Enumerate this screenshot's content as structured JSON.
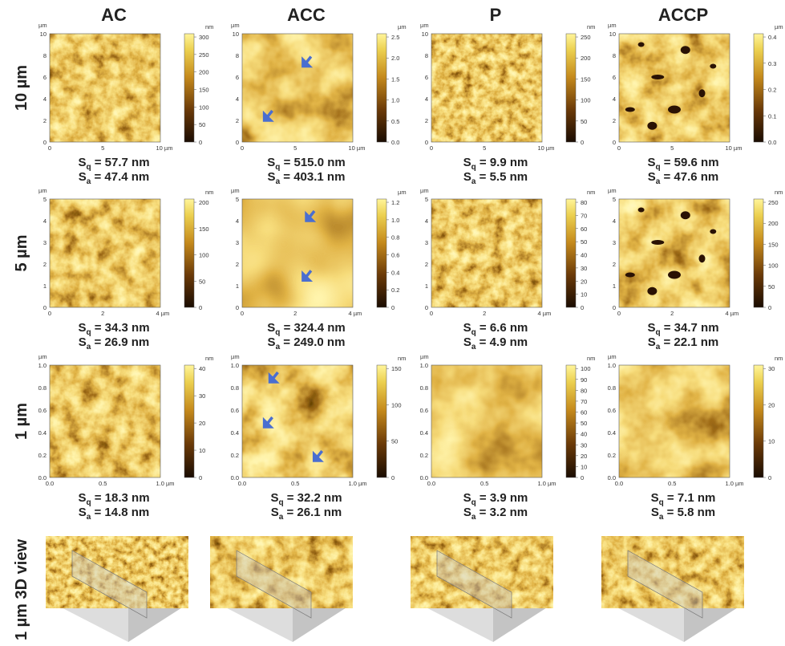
{
  "columns": [
    "AC",
    "ACC",
    "P",
    "ACCP"
  ],
  "rows": [
    {
      "label": "10 µm",
      "panels": [
        {
          "unit": "µm",
          "yticks": [
            "0",
            "2",
            "4",
            "6",
            "8",
            "10"
          ],
          "xticks": [
            "0",
            "5",
            "10 µm"
          ],
          "colorbar": {
            "unit": "nm",
            "ticks": [
              "0",
              "50",
              "100",
              "150",
              "200",
              "250",
              "300"
            ]
          },
          "roughness": [
            {
              "symbol": "S",
              "sub": "q",
              "value": " = 57.7 nm"
            },
            {
              "symbol": "S",
              "sub": "a",
              "value": " = 47.4 nm"
            }
          ]
        },
        {
          "unit": "µm",
          "yticks": [
            "0",
            "2",
            "4",
            "6",
            "8",
            "10"
          ],
          "xticks": [
            "0",
            "5",
            "10 µm"
          ],
          "colorbar": {
            "unit": "µm",
            "ticks": [
              "0.0",
              "0.5",
              "1.0",
              "1.5",
              "2.0",
              "2.5"
            ]
          },
          "roughness": [
            {
              "symbol": "S",
              "sub": "q",
              "value": " = 515.0 nm"
            },
            {
              "symbol": "S",
              "sub": "a",
              "value": " = 403.1 nm"
            }
          ]
        },
        {
          "unit": "µm",
          "yticks": [
            "0",
            "2",
            "4",
            "6",
            "8",
            "10"
          ],
          "xticks": [
            "0",
            "5",
            "10 µm"
          ],
          "colorbar": {
            "unit": "nm",
            "ticks": [
              "0",
              "50",
              "100",
              "150",
              "200",
              "250"
            ]
          },
          "roughness": [
            {
              "symbol": "S",
              "sub": "q",
              "value": " = 9.9 nm"
            },
            {
              "symbol": "S",
              "sub": "a",
              "value": " = 5.5 nm"
            }
          ]
        },
        {
          "unit": "µm",
          "yticks": [
            "0",
            "2",
            "4",
            "6",
            "8",
            "10"
          ],
          "xticks": [
            "0",
            "5",
            "10 µm"
          ],
          "colorbar": {
            "unit": "µm",
            "ticks": [
              "0.0",
              "0.1",
              "0.2",
              "0.3",
              "0.4"
            ]
          },
          "roughness": [
            {
              "symbol": "S",
              "sub": "q",
              "value": " = 59.6 nm"
            },
            {
              "symbol": "S",
              "sub": "a",
              "value": " = 47.6 nm"
            }
          ]
        }
      ]
    },
    {
      "label": "5 µm",
      "panels": [
        {
          "unit": "µm",
          "yticks": [
            "0",
            "1",
            "2",
            "3",
            "4",
            "5"
          ],
          "xticks": [
            "0",
            "2",
            "4 µm"
          ],
          "colorbar": {
            "unit": "nm",
            "ticks": [
              "0",
              "50",
              "100",
              "150",
              "200"
            ]
          },
          "roughness": [
            {
              "symbol": "S",
              "sub": "q",
              "value": " = 34.3 nm"
            },
            {
              "symbol": "S",
              "sub": "a",
              "value": " = 26.9 nm"
            }
          ]
        },
        {
          "unit": "µm",
          "yticks": [
            "0",
            "1",
            "2",
            "3",
            "4",
            "5"
          ],
          "xticks": [
            "0",
            "2",
            "4 µm"
          ],
          "colorbar": {
            "unit": "µm",
            "ticks": [
              "0",
              "0.2",
              "0.4",
              "0.6",
              "0.8",
              "1.0",
              "1.2"
            ]
          },
          "roughness": [
            {
              "symbol": "S",
              "sub": "q",
              "value": " = 324.4 nm"
            },
            {
              "symbol": "S",
              "sub": "a",
              "value": " = 249.0 nm"
            }
          ]
        },
        {
          "unit": "µm",
          "yticks": [
            "0",
            "1",
            "2",
            "3",
            "4",
            "5"
          ],
          "xticks": [
            "0",
            "2",
            "4 µm"
          ],
          "colorbar": {
            "unit": "nm",
            "ticks": [
              "0",
              "10",
              "20",
              "30",
              "40",
              "50",
              "60",
              "70",
              "80"
            ]
          },
          "roughness": [
            {
              "symbol": "S",
              "sub": "q",
              "value": " = 6.6 nm"
            },
            {
              "symbol": "S",
              "sub": "a",
              "value": " = 4.9 nm"
            }
          ]
        },
        {
          "unit": "µm",
          "yticks": [
            "0",
            "1",
            "2",
            "3",
            "4",
            "5"
          ],
          "xticks": [
            "0",
            "2",
            "4 µm"
          ],
          "colorbar": {
            "unit": "nm",
            "ticks": [
              "0",
              "50",
              "100",
              "150",
              "200",
              "250"
            ]
          },
          "roughness": [
            {
              "symbol": "S",
              "sub": "q",
              "value": " = 34.7 nm"
            },
            {
              "symbol": "S",
              "sub": "a",
              "value": " = 22.1 nm"
            }
          ]
        }
      ]
    },
    {
      "label": "1 µm",
      "panels": [
        {
          "unit": "µm",
          "yticks": [
            "0.0",
            "0.2",
            "0.4",
            "0.6",
            "0.8",
            "1.0"
          ],
          "xticks": [
            "0.0",
            "0.5",
            "1.0 µm"
          ],
          "colorbar": {
            "unit": "nm",
            "ticks": [
              "0",
              "10",
              "20",
              "30",
              "40"
            ]
          },
          "roughness": [
            {
              "symbol": "S",
              "sub": "q",
              "value": " = 18.3 nm"
            },
            {
              "symbol": "S",
              "sub": "a",
              "value": " = 14.8 nm"
            }
          ]
        },
        {
          "unit": "µm",
          "yticks": [
            "0.0",
            "0.2",
            "0.4",
            "0.6",
            "0.8",
            "1.0"
          ],
          "xticks": [
            "0.0",
            "0.5",
            "1.0 µm"
          ],
          "colorbar": {
            "unit": "nm",
            "ticks": [
              "0",
              "50",
              "100",
              "150"
            ]
          },
          "roughness": [
            {
              "symbol": "S",
              "sub": "q",
              "value": " = 32.2 nm"
            },
            {
              "symbol": "S",
              "sub": "a",
              "value": " = 26.1 nm"
            }
          ]
        },
        {
          "unit": "µm",
          "yticks": [
            "0.0",
            "0.2",
            "0.4",
            "0.6",
            "0.8",
            "1.0"
          ],
          "xticks": [
            "0.0",
            "0.5",
            "1.0 µm"
          ],
          "colorbar": {
            "unit": "nm",
            "ticks": [
              "0",
              "10",
              "20",
              "30",
              "40",
              "50",
              "60",
              "70",
              "80",
              "90",
              "100"
            ]
          },
          "roughness": [
            {
              "symbol": "S",
              "sub": "q",
              "value": " = 3.9 nm"
            },
            {
              "symbol": "S",
              "sub": "a",
              "value": " = 3.2 nm"
            }
          ]
        },
        {
          "unit": "µm",
          "yticks": [
            "0.0",
            "0.2",
            "0.4",
            "0.6",
            "0.8",
            "1.0"
          ],
          "xticks": [
            "0.0",
            "0.5",
            "1.0 µm"
          ],
          "colorbar": {
            "unit": "nm",
            "ticks": [
              "0",
              "10",
              "20",
              "30"
            ]
          },
          "roughness": [
            {
              "symbol": "S",
              "sub": "q",
              "value": " = 7.1 nm"
            },
            {
              "symbol": "S",
              "sub": "a",
              "value": " = 5.8 nm"
            }
          ]
        }
      ]
    }
  ],
  "view3d": {
    "label": "1 µm 3D view"
  }
}
